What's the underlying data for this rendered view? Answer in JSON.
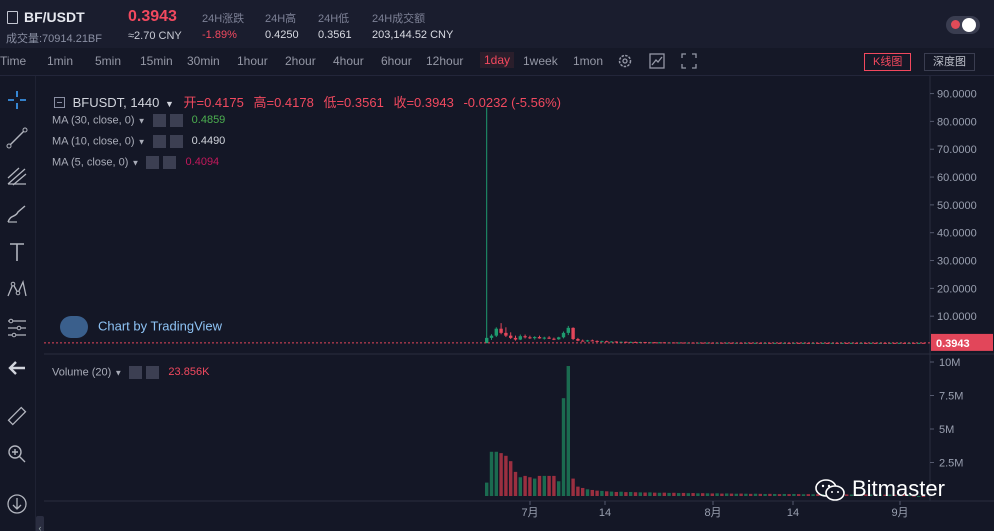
{
  "header": {
    "pair": "BF/USDT",
    "volume_label": "成交量:70914.21BF",
    "last_price": "0.3943",
    "cny_price": "≈2.70 CNY",
    "stats": [
      {
        "label": "24H涨跌",
        "value": "-1.89%",
        "color": "#f1495f"
      },
      {
        "label": "24H高",
        "value": "0.4250",
        "color": "#d8dae2"
      },
      {
        "label": "24H低",
        "value": "0.3561",
        "color": "#d8dae2"
      },
      {
        "label": "24H成交额",
        "value": "203,144.52 CNY",
        "color": "#d8dae2"
      }
    ]
  },
  "toolbar": {
    "intervals": [
      "Time",
      "1min",
      "5min",
      "15min",
      "30min",
      "1hour",
      "2hour",
      "4hour",
      "6hour",
      "12hour",
      "1day",
      "1week",
      "1mon"
    ],
    "active_interval": "1day",
    "icons": [
      "settings-icon",
      "chart-type-icon",
      "fullscreen-icon"
    ],
    "kline_label": "K线图",
    "depth_label": "深度图"
  },
  "legend": {
    "symbol": "BFUSDT, 1440",
    "open_label": "开=0.4175",
    "high_label": "高=0.4178",
    "low_label": "低=0.3561",
    "close_label": "收=0.3943",
    "change": "-0.0232 (-5.56%)",
    "ma": [
      {
        "label": "MA (30, close, 0)",
        "value": "0.4859",
        "color": "#4caf50"
      },
      {
        "label": "MA (10, close, 0)",
        "value": "0.4490",
        "color": "#d1d4dc"
      },
      {
        "label": "MA (5, close, 0)",
        "value": "0.4094",
        "color": "#c2185b"
      }
    ],
    "volume_label": "Volume (20)",
    "volume_value": "23.856K"
  },
  "watermark": "Chart by TradingView",
  "brand": "Bitmaster",
  "price_axis": [
    "90.0000",
    "80.0000",
    "70.0000",
    "60.0000",
    "50.0000",
    "40.0000",
    "30.0000",
    "20.0000",
    "10.0000"
  ],
  "price_marker": "0.3943",
  "volume_axis": [
    "10M",
    "7.5M",
    "5M",
    "2.5M"
  ],
  "time_axis": [
    "7月",
    "14",
    "8月",
    "14",
    "9月"
  ],
  "chart_data": {
    "type": "bar",
    "price_ylim": [
      0,
      92
    ],
    "volume_ylim": [
      0,
      10000000
    ],
    "candles": [
      {
        "o": 0.3,
        "h": 85.0,
        "l": 0.3,
        "c": 2.2
      },
      {
        "o": 2.2,
        "h": 3.5,
        "l": 1.5,
        "c": 3.0
      },
      {
        "o": 3.0,
        "h": 6.0,
        "l": 2.5,
        "c": 5.5
      },
      {
        "o": 5.5,
        "h": 7.5,
        "l": 3.5,
        "c": 4.0
      },
      {
        "o": 4.0,
        "h": 6.0,
        "l": 2.5,
        "c": 3.0
      },
      {
        "o": 3.0,
        "h": 4.2,
        "l": 1.8,
        "c": 2.2
      },
      {
        "o": 2.2,
        "h": 3.0,
        "l": 1.2,
        "c": 1.6
      },
      {
        "o": 1.6,
        "h": 3.4,
        "l": 1.4,
        "c": 2.8
      },
      {
        "o": 2.8,
        "h": 3.4,
        "l": 2.0,
        "c": 2.4
      },
      {
        "o": 2.4,
        "h": 3.0,
        "l": 1.8,
        "c": 2.1
      },
      {
        "o": 2.1,
        "h": 2.8,
        "l": 1.6,
        "c": 2.5
      },
      {
        "o": 2.5,
        "h": 3.0,
        "l": 1.9,
        "c": 2.0
      },
      {
        "o": 2.0,
        "h": 2.6,
        "l": 1.6,
        "c": 2.3
      },
      {
        "o": 2.3,
        "h": 2.8,
        "l": 1.8,
        "c": 1.9
      },
      {
        "o": 1.9,
        "h": 2.3,
        "l": 1.4,
        "c": 1.7
      },
      {
        "o": 1.7,
        "h": 2.6,
        "l": 1.5,
        "c": 2.4
      },
      {
        "o": 2.4,
        "h": 4.5,
        "l": 2.0,
        "c": 4.0
      },
      {
        "o": 4.0,
        "h": 6.5,
        "l": 3.2,
        "c": 5.8
      },
      {
        "o": 5.8,
        "h": 6.0,
        "l": 1.4,
        "c": 1.8
      },
      {
        "o": 1.8,
        "h": 2.2,
        "l": 1.0,
        "c": 1.2
      },
      {
        "o": 1.2,
        "h": 1.6,
        "l": 0.9,
        "c": 1.1
      },
      {
        "o": 1.1,
        "h": 1.5,
        "l": 0.8,
        "c": 1.3
      },
      {
        "o": 1.3,
        "h": 1.6,
        "l": 1.0,
        "c": 1.1
      },
      {
        "o": 1.1,
        "h": 1.3,
        "l": 0.8,
        "c": 0.9
      },
      {
        "o": 0.9,
        "h": 1.2,
        "l": 0.7,
        "c": 1.0
      },
      {
        "o": 1.0,
        "h": 1.2,
        "l": 0.8,
        "c": 0.85
      },
      {
        "o": 0.85,
        "h": 1.0,
        "l": 0.7,
        "c": 0.9
      },
      {
        "o": 0.9,
        "h": 1.0,
        "l": 0.7,
        "c": 0.75
      },
      {
        "o": 0.75,
        "h": 0.9,
        "l": 0.6,
        "c": 0.8
      },
      {
        "o": 0.8,
        "h": 0.9,
        "l": 0.6,
        "c": 0.7
      },
      {
        "o": 0.7,
        "h": 0.85,
        "l": 0.6,
        "c": 0.75
      },
      {
        "o": 0.75,
        "h": 0.85,
        "l": 0.6,
        "c": 0.65
      },
      {
        "o": 0.65,
        "h": 0.8,
        "l": 0.55,
        "c": 0.7
      },
      {
        "o": 0.7,
        "h": 0.75,
        "l": 0.55,
        "c": 0.6
      },
      {
        "o": 0.6,
        "h": 0.7,
        "l": 0.5,
        "c": 0.62
      },
      {
        "o": 0.62,
        "h": 0.7,
        "l": 0.5,
        "c": 0.55
      },
      {
        "o": 0.55,
        "h": 0.65,
        "l": 0.48,
        "c": 0.6
      },
      {
        "o": 0.6,
        "h": 0.65,
        "l": 0.48,
        "c": 0.52
      },
      {
        "o": 0.52,
        "h": 0.6,
        "l": 0.45,
        "c": 0.55
      },
      {
        "o": 0.55,
        "h": 0.6,
        "l": 0.45,
        "c": 0.5
      },
      {
        "o": 0.5,
        "h": 0.58,
        "l": 0.44,
        "c": 0.52
      },
      {
        "o": 0.52,
        "h": 0.56,
        "l": 0.44,
        "c": 0.48
      },
      {
        "o": 0.48,
        "h": 0.55,
        "l": 0.42,
        "c": 0.5
      },
      {
        "o": 0.5,
        "h": 0.54,
        "l": 0.42,
        "c": 0.46
      },
      {
        "o": 0.46,
        "h": 0.52,
        "l": 0.42,
        "c": 0.48
      },
      {
        "o": 0.48,
        "h": 0.52,
        "l": 0.42,
        "c": 0.45
      },
      {
        "o": 0.45,
        "h": 0.5,
        "l": 0.42,
        "c": 0.47
      },
      {
        "o": 0.47,
        "h": 0.5,
        "l": 0.42,
        "c": 0.44
      },
      {
        "o": 0.44,
        "h": 0.48,
        "l": 0.4,
        "c": 0.46
      },
      {
        "o": 0.46,
        "h": 0.48,
        "l": 0.4,
        "c": 0.43
      },
      {
        "o": 0.43,
        "h": 0.47,
        "l": 0.4,
        "c": 0.45
      },
      {
        "o": 0.45,
        "h": 0.47,
        "l": 0.4,
        "c": 0.42
      },
      {
        "o": 0.42,
        "h": 0.46,
        "l": 0.39,
        "c": 0.44
      },
      {
        "o": 0.44,
        "h": 0.46,
        "l": 0.39,
        "c": 0.42
      },
      {
        "o": 0.42,
        "h": 0.45,
        "l": 0.39,
        "c": 0.43
      },
      {
        "o": 0.43,
        "h": 0.45,
        "l": 0.39,
        "c": 0.41
      },
      {
        "o": 0.41,
        "h": 0.44,
        "l": 0.38,
        "c": 0.42
      },
      {
        "o": 0.42,
        "h": 0.44,
        "l": 0.38,
        "c": 0.41
      },
      {
        "o": 0.41,
        "h": 0.43,
        "l": 0.38,
        "c": 0.42
      },
      {
        "o": 0.42,
        "h": 0.43,
        "l": 0.38,
        "c": 0.4
      },
      {
        "o": 0.4,
        "h": 0.43,
        "l": 0.38,
        "c": 0.41
      },
      {
        "o": 0.41,
        "h": 0.43,
        "l": 0.38,
        "c": 0.4
      },
      {
        "o": 0.4,
        "h": 0.42,
        "l": 0.37,
        "c": 0.41
      },
      {
        "o": 0.41,
        "h": 0.42,
        "l": 0.37,
        "c": 0.4
      },
      {
        "o": 0.4,
        "h": 0.42,
        "l": 0.37,
        "c": 0.41
      },
      {
        "o": 0.41,
        "h": 0.42,
        "l": 0.37,
        "c": 0.4
      },
      {
        "o": 0.4,
        "h": 0.42,
        "l": 0.37,
        "c": 0.41
      },
      {
        "o": 0.41,
        "h": 0.42,
        "l": 0.37,
        "c": 0.4
      },
      {
        "o": 0.4,
        "h": 0.41,
        "l": 0.37,
        "c": 0.405
      },
      {
        "o": 0.405,
        "h": 0.41,
        "l": 0.37,
        "c": 0.4
      },
      {
        "o": 0.4,
        "h": 0.41,
        "l": 0.37,
        "c": 0.402
      },
      {
        "o": 0.402,
        "h": 0.41,
        "l": 0.37,
        "c": 0.4
      },
      {
        "o": 0.4,
        "h": 0.41,
        "l": 0.37,
        "c": 0.405
      },
      {
        "o": 0.405,
        "h": 0.41,
        "l": 0.37,
        "c": 0.4
      },
      {
        "o": 0.4,
        "h": 0.41,
        "l": 0.37,
        "c": 0.402
      },
      {
        "o": 0.402,
        "h": 0.41,
        "l": 0.37,
        "c": 0.4
      },
      {
        "o": 0.4,
        "h": 0.41,
        "l": 0.37,
        "c": 0.405
      },
      {
        "o": 0.405,
        "h": 0.41,
        "l": 0.37,
        "c": 0.4
      },
      {
        "o": 0.4,
        "h": 0.41,
        "l": 0.37,
        "c": 0.402
      },
      {
        "o": 0.402,
        "h": 0.41,
        "l": 0.37,
        "c": 0.4
      },
      {
        "o": 0.4,
        "h": 0.41,
        "l": 0.37,
        "c": 0.405
      },
      {
        "o": 0.405,
        "h": 0.41,
        "l": 0.37,
        "c": 0.4
      },
      {
        "o": 0.4,
        "h": 0.41,
        "l": 0.37,
        "c": 0.402
      },
      {
        "o": 0.402,
        "h": 0.41,
        "l": 0.37,
        "c": 0.4
      },
      {
        "o": 0.4,
        "h": 0.41,
        "l": 0.37,
        "c": 0.405
      },
      {
        "o": 0.405,
        "h": 0.41,
        "l": 0.37,
        "c": 0.4
      },
      {
        "o": 0.4,
        "h": 0.41,
        "l": 0.37,
        "c": 0.402
      },
      {
        "o": 0.402,
        "h": 0.41,
        "l": 0.37,
        "c": 0.4
      },
      {
        "o": 0.4,
        "h": 0.41,
        "l": 0.37,
        "c": 0.405
      },
      {
        "o": 0.405,
        "h": 0.41,
        "l": 0.37,
        "c": 0.4
      },
      {
        "o": 0.4,
        "h": 0.41,
        "l": 0.37,
        "c": 0.402
      },
      {
        "o": 0.4175,
        "h": 0.4178,
        "l": 0.3561,
        "c": 0.3943
      }
    ],
    "volumes": [
      1000000,
      3300000,
      3300000,
      3200000,
      3000000,
      2600000,
      1800000,
      1400000,
      1500000,
      1400000,
      1300000,
      1500000,
      1500000,
      1500000,
      1500000,
      1100000,
      7300000,
      9700000,
      1300000,
      700000,
      600000,
      500000,
      450000,
      400000,
      380000,
      350000,
      330000,
      300000,
      320000,
      290000,
      300000,
      280000,
      270000,
      260000,
      270000,
      250000,
      240000,
      250000,
      230000,
      240000,
      220000,
      230000,
      210000,
      220000,
      200000,
      210000,
      200000,
      190000,
      200000,
      180000,
      190000,
      180000,
      170000,
      180000,
      170000,
      160000,
      170000,
      160000,
      150000,
      160000,
      150000,
      140000,
      150000,
      140000,
      150000,
      140000,
      130000,
      140000,
      130000,
      140000,
      130000,
      120000,
      130000,
      120000,
      130000,
      120000,
      110000,
      120000,
      110000,
      120000,
      110000,
      100000,
      110000,
      100000,
      110000,
      100000,
      90000,
      100000,
      90000,
      23856
    ]
  }
}
